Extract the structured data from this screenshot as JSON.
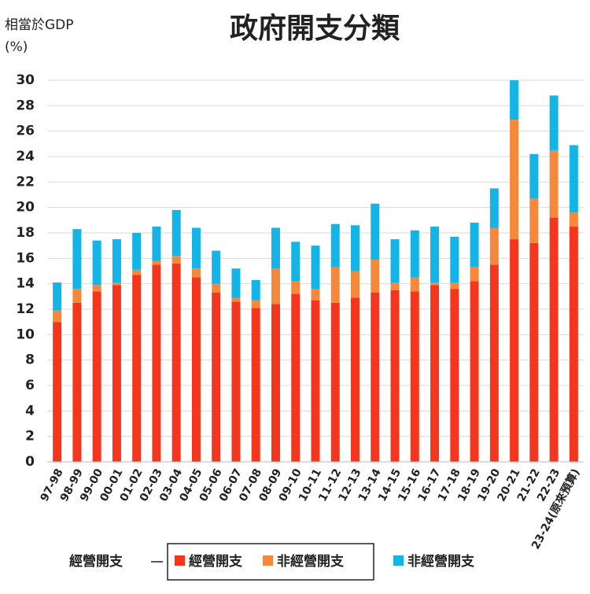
{
  "chart_data": {
    "type": "stacked_bar",
    "title": "政府開支分類",
    "y_axis_label": [
      "相當於GDP",
      "(%)"
    ],
    "legend_group_label": "經營開支",
    "categories": [
      "97-98",
      "98-99",
      "99-00",
      "00-01",
      "01-02",
      "02-03",
      "03-04",
      "04-05",
      "05-06",
      "06-07",
      "07-08",
      "08-09",
      "09-10",
      "10-11",
      "11-12",
      "12-13",
      "13-14",
      "14-15",
      "15-16",
      "16-17",
      "17-18",
      "18-19",
      "19-20",
      "20-21",
      "21-22",
      "22-23",
      "23-24(原來預算)"
    ],
    "series": [
      {
        "name": "經營開支",
        "color": "#f4361e",
        "values": [
          11.0,
          12.5,
          13.4,
          13.9,
          14.7,
          15.5,
          15.6,
          14.5,
          13.3,
          12.6,
          12.1,
          12.4,
          13.2,
          12.7,
          12.5,
          12.9,
          13.3,
          13.5,
          13.4,
          13.9,
          13.6,
          14.2,
          15.5,
          17.5,
          17.2,
          19.2,
          18.5
        ]
      },
      {
        "name": "非經營開支",
        "color": "#f5883a",
        "values": [
          0.9,
          1.1,
          0.5,
          0.2,
          0.4,
          0.3,
          0.6,
          0.7,
          0.7,
          0.3,
          0.6,
          2.8,
          1.0,
          0.9,
          2.8,
          2.1,
          2.6,
          0.6,
          1.1,
          0.2,
          0.5,
          1.1,
          2.9,
          9.4,
          3.5,
          5.3,
          1.1
        ]
      },
      {
        "name": "非經營開支",
        "color": "#15b4e6",
        "values": [
          2.2,
          4.7,
          3.5,
          3.4,
          2.9,
          2.7,
          3.6,
          3.2,
          2.6,
          2.3,
          1.6,
          3.2,
          3.1,
          3.4,
          3.4,
          3.6,
          4.4,
          3.4,
          3.7,
          4.4,
          3.6,
          3.5,
          3.1,
          3.1,
          3.5,
          4.3,
          5.3
        ]
      }
    ],
    "ylim": [
      0,
      30
    ],
    "yticks": [
      0,
      2,
      4,
      6,
      8,
      10,
      12,
      14,
      16,
      18,
      20,
      22,
      24,
      26,
      28,
      30
    ],
    "grid": true
  }
}
